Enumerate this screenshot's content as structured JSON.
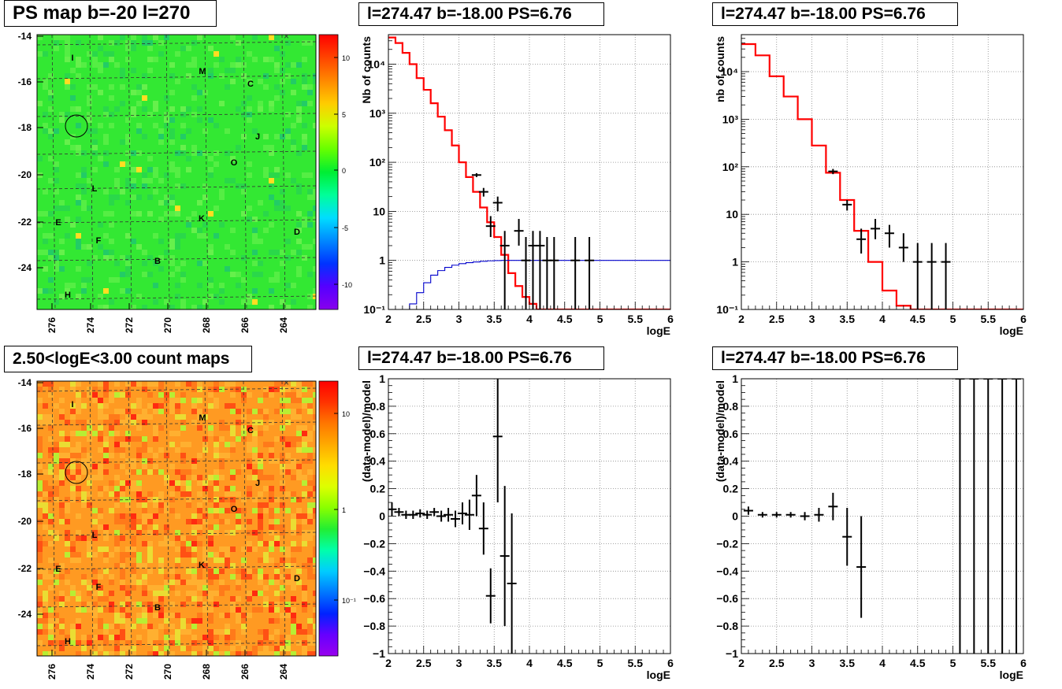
{
  "panels": {
    "map_top": {
      "title": "PS map b=-20 l=270",
      "ytick_labels": [
        "-14",
        "-16",
        "-18",
        "-20",
        "-22",
        "-24"
      ],
      "xtick_labels": [
        "276",
        "274",
        "272",
        "270",
        "268",
        "266",
        "264"
      ],
      "colorbar_labels": [
        "10",
        "5",
        "0",
        "-5",
        "-10"
      ],
      "letters": [
        "I",
        "M",
        "C",
        "J",
        "O",
        "L",
        "E",
        "F",
        "K",
        "D",
        "B",
        "H"
      ]
    },
    "map_bottom": {
      "title": "2.50<logE<3.00 count maps",
      "ytick_labels": [
        "-14",
        "-16",
        "-18",
        "-20",
        "-22",
        "-24"
      ],
      "xtick_labels": [
        "276",
        "274",
        "272",
        "270",
        "268",
        "266",
        "264"
      ],
      "colorbar_labels": [
        "10",
        "1",
        "10⁻¹"
      ],
      "letters": [
        "I",
        "M",
        "C",
        "J",
        "O",
        "L",
        "E",
        "F",
        "K",
        "D",
        "B",
        "H"
      ]
    },
    "spec_mid": {
      "title": "l=274.47 b=-18.00 PS=6.76"
    },
    "spec_right": {
      "title": "l=274.47 b=-18.00 PS=6.76"
    },
    "res_mid": {
      "title": "l=274.47 b=-18.00 PS=6.76"
    },
    "res_right": {
      "title": "l=274.47 b=-18.00 PS=6.76"
    }
  },
  "chart_data": [
    {
      "id": "spec_mid",
      "type": "line",
      "xlabel": "logE",
      "ylabel": "Nb of counts",
      "xlim": [
        2,
        6
      ],
      "ylim": [
        0.1,
        40000
      ],
      "yscale": "log",
      "xtick_labels": [
        "2",
        "2.5",
        "3",
        "3.5",
        "4",
        "4.5",
        "5",
        "5.5",
        "6"
      ],
      "ytick_labels": [
        "10⁻¹",
        "1",
        "10",
        "10²",
        "10³",
        "10⁴"
      ],
      "grid": true,
      "series": [
        {
          "color": "#ff0000",
          "step_x": [
            2.0,
            2.1,
            2.2,
            2.3,
            2.4,
            2.5,
            2.6,
            2.7,
            2.8,
            2.9,
            3.0,
            3.1,
            3.2,
            3.3,
            3.4,
            3.5,
            3.6,
            3.7,
            3.8,
            3.9,
            4.0,
            4.1,
            4.2,
            4.3,
            6.0
          ],
          "step_y": [
            35000,
            27000,
            17000,
            10000,
            5200,
            3000,
            1600,
            850,
            450,
            220,
            100,
            50,
            25,
            12,
            6,
            3,
            1.3,
            0.55,
            0.3,
            0.18,
            0.13,
            0.1,
            0.1,
            0.1
          ]
        },
        {
          "color": "#0000cc",
          "step_x": [
            2.0,
            2.1,
            2.2,
            2.3,
            2.4,
            2.5,
            2.6,
            2.7,
            2.8,
            2.9,
            3.0,
            3.1,
            3.2,
            3.3,
            3.4,
            3.5,
            3.6,
            6.0
          ],
          "step_y": [
            0.08,
            0.08,
            0.1,
            0.13,
            0.22,
            0.35,
            0.5,
            0.62,
            0.72,
            0.8,
            0.86,
            0.9,
            0.93,
            0.96,
            0.98,
            0.99,
            1.0
          ]
        }
      ],
      "points": [
        {
          "x": 3.25,
          "y": 55,
          "ylo": 50,
          "yhi": 60
        },
        {
          "x": 3.35,
          "y": 25,
          "ylo": 20,
          "yhi": 30
        },
        {
          "x": 3.45,
          "y": 5,
          "ylo": 3,
          "yhi": 8
        },
        {
          "x": 3.55,
          "y": 15,
          "ylo": 10,
          "yhi": 20
        },
        {
          "x": 3.65,
          "y": 2,
          "ylo": 0.1,
          "yhi": 4
        },
        {
          "x": 3.85,
          "y": 4,
          "ylo": 2,
          "yhi": 7
        },
        {
          "x": 3.95,
          "y": 1,
          "ylo": 0.1,
          "yhi": 3
        },
        {
          "x": 4.05,
          "y": 2,
          "ylo": 0.1,
          "yhi": 4
        },
        {
          "x": 4.15,
          "y": 2,
          "ylo": 0.1,
          "yhi": 4
        },
        {
          "x": 4.25,
          "y": 1,
          "ylo": 0.1,
          "yhi": 3
        },
        {
          "x": 4.35,
          "y": 1,
          "ylo": 0.1,
          "yhi": 3
        },
        {
          "x": 4.65,
          "y": 1,
          "ylo": 0.1,
          "yhi": 3
        },
        {
          "x": 4.85,
          "y": 1,
          "ylo": 0.1,
          "yhi": 3
        }
      ]
    },
    {
      "id": "spec_right",
      "type": "line",
      "xlabel": "logE",
      "ylabel": "nb of counts",
      "xlim": [
        2,
        6
      ],
      "ylim": [
        0.1,
        60000
      ],
      "yscale": "log",
      "xtick_labels": [
        "2",
        "2.5",
        "3",
        "3.5",
        "4",
        "4.5",
        "5",
        "5.5",
        "6"
      ],
      "ytick_labels": [
        "10⁻¹",
        "1",
        "10",
        "10²",
        "10³",
        "10⁴"
      ],
      "grid": true,
      "series": [
        {
          "color": "#ff0000",
          "step_x": [
            2.0,
            2.2,
            2.4,
            2.6,
            2.8,
            3.0,
            3.2,
            3.4,
            3.6,
            3.8,
            4.0,
            4.2,
            4.4,
            6.0
          ],
          "step_y": [
            38000,
            22000,
            8000,
            3000,
            1000,
            280,
            75,
            20,
            4.5,
            1.0,
            0.25,
            0.12,
            0.1
          ]
        }
      ],
      "points": [
        {
          "x": 3.3,
          "y": 80,
          "ylo": 70,
          "yhi": 90
        },
        {
          "x": 3.5,
          "y": 16,
          "ylo": 12,
          "yhi": 20
        },
        {
          "x": 3.7,
          "y": 3,
          "ylo": 1.5,
          "yhi": 5
        },
        {
          "x": 3.9,
          "y": 5,
          "ylo": 3,
          "yhi": 8
        },
        {
          "x": 4.1,
          "y": 4,
          "ylo": 2,
          "yhi": 6
        },
        {
          "x": 4.3,
          "y": 2,
          "ylo": 1,
          "yhi": 4
        },
        {
          "x": 4.5,
          "y": 1,
          "ylo": 0.1,
          "yhi": 2.5
        },
        {
          "x": 4.7,
          "y": 1,
          "ylo": 0.1,
          "yhi": 2.5
        },
        {
          "x": 4.9,
          "y": 1,
          "ylo": 0.1,
          "yhi": 2.5
        }
      ]
    },
    {
      "id": "res_mid",
      "type": "scatter",
      "xlabel": "logE",
      "ylabel": "(data-model)/model",
      "xlim": [
        2,
        6
      ],
      "ylim": [
        -1,
        1
      ],
      "yscale": "linear",
      "xtick_labels": [
        "2",
        "2.5",
        "3",
        "3.5",
        "4",
        "4.5",
        "5",
        "5.5",
        "6"
      ],
      "ytick_labels": [
        "−1",
        "−0.8",
        "−0.6",
        "−0.4",
        "−0.2",
        "0",
        "0.2",
        "0.4",
        "0.6",
        "0.8",
        "1"
      ],
      "grid": true,
      "points": [
        {
          "x": 2.05,
          "y": 0.05,
          "ylo": 0.0,
          "yhi": 0.1
        },
        {
          "x": 2.15,
          "y": 0.03,
          "ylo": 0.0,
          "yhi": 0.06
        },
        {
          "x": 2.25,
          "y": 0.01,
          "ylo": -0.02,
          "yhi": 0.04
        },
        {
          "x": 2.35,
          "y": 0.01,
          "ylo": -0.02,
          "yhi": 0.04
        },
        {
          "x": 2.45,
          "y": 0.02,
          "ylo": -0.01,
          "yhi": 0.05
        },
        {
          "x": 2.55,
          "y": 0.01,
          "ylo": -0.02,
          "yhi": 0.04
        },
        {
          "x": 2.65,
          "y": 0.03,
          "ylo": 0.0,
          "yhi": 0.06
        },
        {
          "x": 2.75,
          "y": 0.0,
          "ylo": -0.04,
          "yhi": 0.04
        },
        {
          "x": 2.85,
          "y": 0.01,
          "ylo": -0.04,
          "yhi": 0.06
        },
        {
          "x": 2.95,
          "y": -0.02,
          "ylo": -0.08,
          "yhi": 0.04
        },
        {
          "x": 3.05,
          "y": 0.02,
          "ylo": -0.06,
          "yhi": 0.1
        },
        {
          "x": 3.15,
          "y": 0.01,
          "ylo": -0.1,
          "yhi": 0.12
        },
        {
          "x": 3.25,
          "y": 0.15,
          "ylo": 0.0,
          "yhi": 0.3
        },
        {
          "x": 3.35,
          "y": -0.09,
          "ylo": -0.28,
          "yhi": 0.1
        },
        {
          "x": 3.45,
          "y": -0.58,
          "ylo": -0.78,
          "yhi": -0.38
        },
        {
          "x": 3.55,
          "y": 0.58,
          "ylo": 0.1,
          "yhi": 1.0
        },
        {
          "x": 3.65,
          "y": -0.29,
          "ylo": -0.8,
          "yhi": 0.22
        },
        {
          "x": 3.75,
          "y": -0.49,
          "ylo": -1.0,
          "yhi": 0.02
        }
      ]
    },
    {
      "id": "res_right",
      "type": "scatter",
      "xlabel": "logE",
      "ylabel": "(data-model)/model",
      "xlim": [
        2,
        6
      ],
      "ylim": [
        -1,
        1
      ],
      "yscale": "linear",
      "xtick_labels": [
        "2",
        "2.5",
        "3",
        "3.5",
        "4",
        "4.5",
        "5",
        "5.5",
        "6"
      ],
      "ytick_labels": [
        "−1",
        "−0.8",
        "−0.6",
        "−0.4",
        "−0.2",
        "0",
        "0.2",
        "0.4",
        "0.6",
        "0.8",
        "1"
      ],
      "grid": true,
      "points": [
        {
          "x": 2.1,
          "y": 0.04,
          "ylo": 0.01,
          "yhi": 0.07
        },
        {
          "x": 2.3,
          "y": 0.01,
          "ylo": -0.01,
          "yhi": 0.03
        },
        {
          "x": 2.5,
          "y": 0.01,
          "ylo": -0.01,
          "yhi": 0.03
        },
        {
          "x": 2.7,
          "y": 0.01,
          "ylo": -0.01,
          "yhi": 0.03
        },
        {
          "x": 2.9,
          "y": 0.0,
          "ylo": -0.03,
          "yhi": 0.03
        },
        {
          "x": 3.1,
          "y": 0.01,
          "ylo": -0.04,
          "yhi": 0.06
        },
        {
          "x": 3.3,
          "y": 0.07,
          "ylo": -0.03,
          "yhi": 0.17
        },
        {
          "x": 3.5,
          "y": -0.15,
          "ylo": -0.36,
          "yhi": 0.06
        },
        {
          "x": 3.7,
          "y": -0.37,
          "ylo": -0.74,
          "yhi": 0.0
        },
        {
          "x": 5.1,
          "y": 1.0,
          "ylo": -1.0,
          "yhi": 1.0
        },
        {
          "x": 5.3,
          "y": 1.0,
          "ylo": -1.0,
          "yhi": 1.0
        },
        {
          "x": 5.5,
          "y": 1.0,
          "ylo": -1.0,
          "yhi": 1.0
        },
        {
          "x": 5.7,
          "y": 1.0,
          "ylo": -1.0,
          "yhi": 1.0
        },
        {
          "x": 5.9,
          "y": 1.0,
          "ylo": -1.0,
          "yhi": 1.0
        }
      ]
    }
  ]
}
